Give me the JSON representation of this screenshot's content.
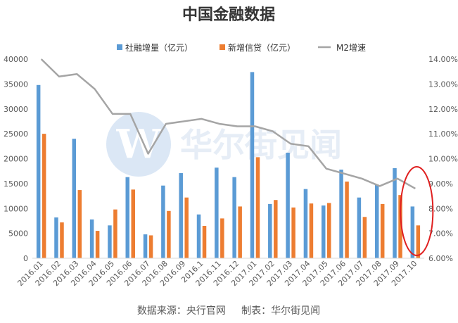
{
  "chart_data": {
    "type": "bar+line",
    "title": "中国金融数据",
    "categories": [
      "2016.01",
      "2016.02",
      "2016.03",
      "2016.04",
      "2016.05",
      "2016.06",
      "2016.07",
      "2016.08",
      "2016.09",
      "2016.1",
      "2016.11",
      "2016.12",
      "2017.01",
      "2017.02",
      "2017.03",
      "2017.04",
      "2017.05",
      "2017.06",
      "2017.07",
      "2017.08",
      "2017.09",
      "2017.10"
    ],
    "series": [
      {
        "name": "社融增量（亿元）",
        "type": "bar",
        "axis": "left",
        "color": "#5b9bd5",
        "values": [
          34800,
          8200,
          24000,
          7800,
          6600,
          16300,
          4800,
          14600,
          17100,
          8800,
          18200,
          16300,
          37400,
          10900,
          21200,
          13900,
          10600,
          17800,
          12200,
          14800,
          18100,
          10400
        ]
      },
      {
        "name": "新增信贷（亿元）",
        "type": "bar",
        "axis": "left",
        "color": "#ed7d31",
        "values": [
          25000,
          7200,
          13700,
          5500,
          9800,
          13800,
          4600,
          9500,
          12200,
          6500,
          8000,
          10400,
          20300,
          11700,
          10200,
          11000,
          11100,
          15400,
          8300,
          10900,
          12700,
          6600
        ]
      },
      {
        "name": "M2增速",
        "type": "line",
        "axis": "right",
        "color": "#a5a5a5",
        "values": [
          14.0,
          13.3,
          13.4,
          12.8,
          11.8,
          11.8,
          10.2,
          11.4,
          11.5,
          11.6,
          11.4,
          11.3,
          11.3,
          11.1,
          10.6,
          10.5,
          9.6,
          9.4,
          9.2,
          8.9,
          9.2,
          8.8
        ]
      }
    ],
    "left_axis": {
      "ylim": [
        0,
        40000
      ],
      "ticks": [
        "0",
        "5000",
        "10000",
        "15000",
        "20000",
        "25000",
        "30000",
        "35000",
        "40000"
      ]
    },
    "right_axis": {
      "ylim": [
        6.0,
        14.0
      ],
      "ticks": [
        "6.00%",
        "7.00%",
        "8.00%",
        "9.00%",
        "10.00%",
        "11.00%",
        "12.00%",
        "13.00%",
        "14.00%"
      ]
    },
    "grid": false,
    "legend": "top",
    "footer": "数据来源：央行官网     制表：华尔街见闻",
    "watermark": "华尔街见闻",
    "highlight": {
      "shape": "ellipse",
      "color": "#e02020",
      "target_category": "2017.10"
    }
  }
}
